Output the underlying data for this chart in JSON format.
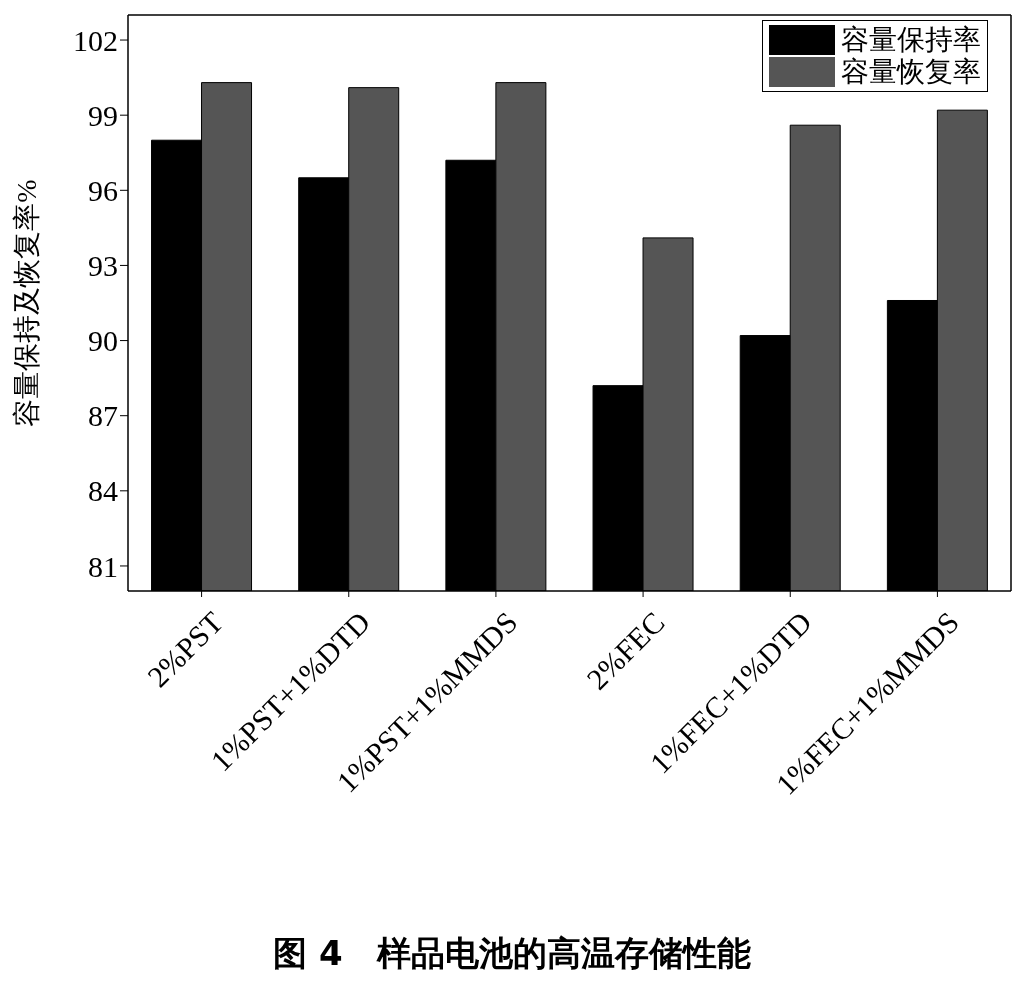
{
  "chart_data": {
    "type": "bar",
    "title": "图 4　样品电池的高温存储性能",
    "ylabel": "容量保持及恢复率%",
    "categories": [
      "2%PST",
      "1%PST+1%DTD",
      "1%PST+1%MMDS",
      "2%FEC",
      "1%FEC+1%DTD",
      "1%FEC+1%MMDS"
    ],
    "series": [
      {
        "name": "容量保持率",
        "color": "#000000",
        "values": [
          98.0,
          96.5,
          97.2,
          88.2,
          90.2,
          91.6
        ]
      },
      {
        "name": "容量恢复率",
        "color": "#555555",
        "values": [
          100.3,
          100.1,
          100.3,
          94.1,
          98.6,
          99.2
        ]
      }
    ],
    "ylim": [
      80,
      103
    ],
    "yticks": [
      81,
      84,
      87,
      90,
      93,
      96,
      99,
      102
    ],
    "legend": "top right"
  }
}
